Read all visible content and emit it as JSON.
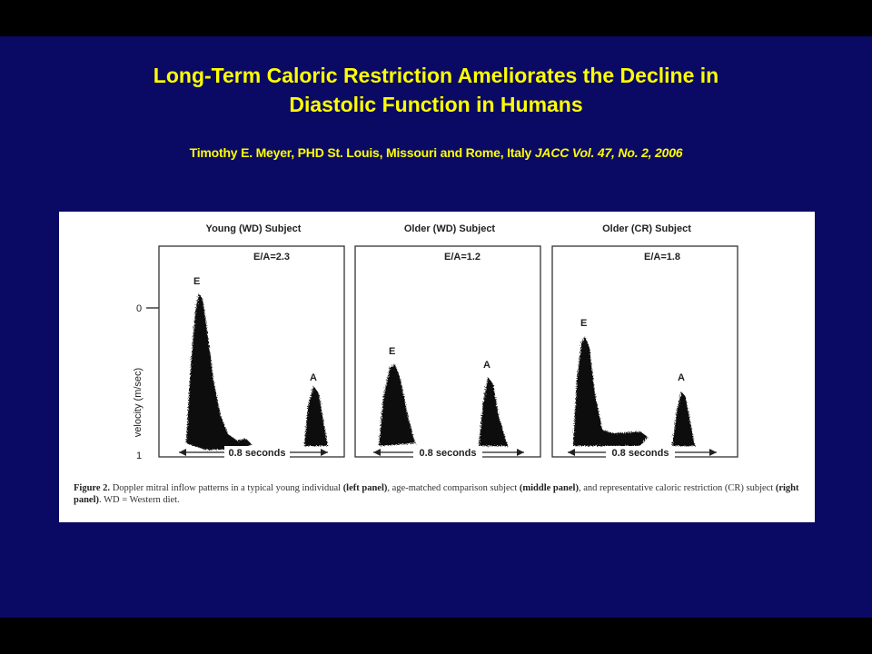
{
  "slide": {
    "title_line1": "Long-Term Caloric Restriction Ameliorates the Decline in",
    "title_line2": "Diastolic Function in Humans",
    "citation_authors": "Timothy E. Meyer, PHD St. Louis, Missouri and Rome, Italy ",
    "citation_journal": "JACC Vol. 47, No. 2, 2006",
    "colors": {
      "background": "#0a0a64",
      "title": "#ffff00",
      "border": "#000000"
    }
  },
  "figure": {
    "y_axis_label": "velocity (m/sec)",
    "y_tick_0": "0",
    "y_tick_1": "1",
    "panels": [
      {
        "title": "Young (WD) Subject",
        "ratio": "E/A=2.3",
        "e_label": "E",
        "a_label": "A",
        "duration": "0.8 seconds"
      },
      {
        "title": "Older (WD) Subject",
        "ratio": "E/A=1.2",
        "e_label": "E",
        "a_label": "A",
        "duration": "0.8 seconds"
      },
      {
        "title": "Older (CR) Subject",
        "ratio": "E/A=1.8",
        "e_label": "E",
        "a_label": "A",
        "duration": "0.8 seconds"
      }
    ],
    "caption": {
      "figure_label": "Figure 2.",
      "part1": " Doppler mitral inflow patterns in a typical young individual ",
      "left_panel": "(left panel)",
      "part2": ", age-matched comparison subject ",
      "middle_panel": "(middle panel)",
      "part3": ", and representative caloric restriction (CR) subject ",
      "right_panel": "(right panel)",
      "part4": ". WD = Western diet."
    }
  }
}
